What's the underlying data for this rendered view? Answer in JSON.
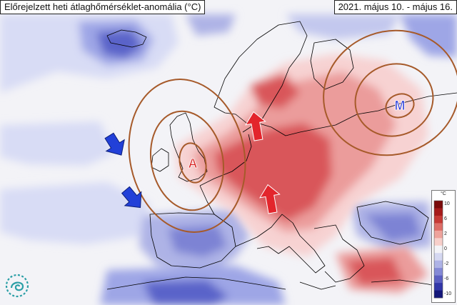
{
  "header": {
    "title": "Előrejelzett heti átlaghőmérséklet-anomália (°C)",
    "date_range": "2021. május 10. - május 16."
  },
  "pressure_centers": [
    {
      "label": "A",
      "kind": "high",
      "color": "#d81e1e"
    },
    {
      "label": "M",
      "kind": "low",
      "color": "#1c2fd6"
    }
  ],
  "arrows": [
    {
      "name": "cold-arrow-bay-of-biscay",
      "color": "#2240d8",
      "direction": "south-east"
    },
    {
      "name": "cold-arrow-atlantic",
      "color": "#2240d8",
      "direction": "south-east"
    },
    {
      "name": "warm-arrow-denmark",
      "color": "#e3252c",
      "direction": "north"
    },
    {
      "name": "warm-arrow-central-europe",
      "color": "#e3252c",
      "direction": "north"
    }
  ],
  "legend": {
    "unit": "°C",
    "ticks": [
      "10",
      "6",
      "2",
      "0",
      "-2",
      "-6",
      "-10"
    ],
    "colors": [
      "#7a0a0a",
      "#a61b1b",
      "#c63a36",
      "#dd6e68",
      "#eea39c",
      "#f7cfca",
      "#f3f3f7",
      "#d5d8f1",
      "#aeb3e6",
      "#8489d6",
      "#5b5fc2",
      "#3237a8",
      "#14177a"
    ]
  },
  "colors": {
    "warm_strong": "#d9575a",
    "warm_mid": "#eb9c9b",
    "warm_light": "#f7d2d2",
    "cool_light": "#d8dcf5",
    "cool_mid": "#9ea6e6",
    "cool_strong": "#5a63c9",
    "isobar": "#a65a2a",
    "coastline": "#000000"
  },
  "logo": {
    "name": "logo"
  }
}
